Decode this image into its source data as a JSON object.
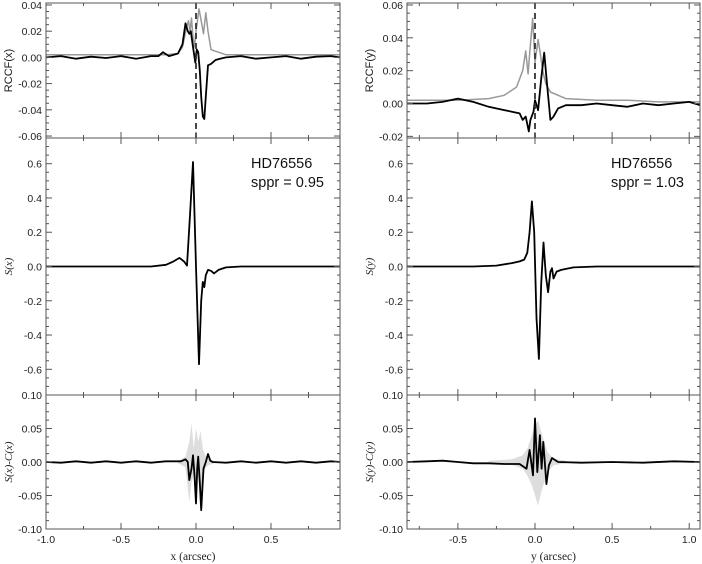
{
  "chart_data": [
    {
      "type": "line",
      "panel": "top-left",
      "ylabel": "RCCF(x)",
      "xlim": [
        -1.0,
        0.96
      ],
      "ylim": [
        -0.0615,
        0.0415
      ],
      "xticks": [
        "-1.0",
        "-0.5",
        "0.0",
        "0.5"
      ],
      "yticks": [
        "-0.06",
        "-0.04",
        "-0.02",
        "0.00",
        "0.02",
        "0.04"
      ],
      "show_xtick_labels": false,
      "vline": {
        "x": 0.0,
        "style": "dashed",
        "color": "#333333"
      },
      "series": [
        {
          "name": "gray",
          "color": "#999999",
          "x": [
            -1,
            -0.5,
            -0.2,
            -0.12,
            -0.09,
            -0.065,
            -0.05,
            -0.04,
            -0.03,
            -0.02,
            -0.01,
            0.0,
            0.02,
            0.035,
            0.05,
            0.065,
            0.08,
            0.1,
            0.12,
            0.15,
            0.2,
            0.3,
            0.5,
            0.96
          ],
          "y": [
            0.002,
            0.002,
            0.002,
            0.003,
            0.008,
            0.022,
            0.028,
            0.02,
            0.03,
            0.015,
            0.008,
            0.02,
            0.037,
            0.028,
            0.018,
            0.034,
            0.02,
            0.006,
            0.005,
            0.004,
            0.002,
            0.002,
            0.002,
            0.002
          ]
        },
        {
          "name": "black",
          "color": "#000000",
          "x": [
            -1.0,
            -0.9,
            -0.8,
            -0.7,
            -0.6,
            -0.5,
            -0.4,
            -0.3,
            -0.25,
            -0.22,
            -0.18,
            -0.12,
            -0.09,
            -0.07,
            -0.055,
            -0.045,
            -0.035,
            -0.02,
            -0.005,
            0.005,
            0.015,
            0.025,
            0.035,
            0.045,
            0.055,
            0.065,
            0.08,
            0.1,
            0.13,
            0.16,
            0.2,
            0.3,
            0.4,
            0.5,
            0.6,
            0.7,
            0.8,
            0.9,
            0.96
          ],
          "y": [
            0,
            0.001,
            -0.001,
            0.0005,
            -0.0005,
            0.001,
            -0.001,
            0.001,
            0.001,
            0.004,
            0.001,
            0.003,
            0.01,
            0.026,
            0.02,
            0.018,
            0.02,
            0.008,
            -0.004,
            0.006,
            0.004,
            -0.01,
            -0.03,
            -0.045,
            -0.047,
            -0.03,
            -0.006,
            -0.005,
            -0.002,
            -0.001,
            0,
            0.001,
            -0.001,
            0,
            0.001,
            -0.001,
            0.0005,
            0.001,
            0
          ]
        }
      ]
    },
    {
      "type": "line",
      "panel": "mid-left",
      "ylabel": "S(x)",
      "xlim": [
        -1.0,
        0.96
      ],
      "ylim": [
        -0.75,
        0.75
      ],
      "xticks": [
        "-1.0",
        "-0.5",
        "0.0",
        "0.5"
      ],
      "yticks": [
        "-0.6",
        "-0.4",
        "-0.2",
        "0.0",
        "0.2",
        "0.4",
        "0.6"
      ],
      "show_xtick_labels": false,
      "annotations": [
        "HD76556",
        "sppr = 0.95"
      ],
      "series": [
        {
          "name": "S(x)",
          "color": "#000000",
          "x": [
            -1.0,
            -0.5,
            -0.3,
            -0.2,
            -0.15,
            -0.11,
            -0.08,
            -0.06,
            -0.04,
            -0.02,
            0.0,
            0.02,
            0.035,
            0.045,
            0.055,
            0.065,
            0.08,
            0.1,
            0.12,
            0.15,
            0.2,
            0.3,
            0.6,
            0.96
          ],
          "y": [
            0,
            0,
            0,
            0.01,
            0.03,
            0.05,
            0.03,
            0.005,
            0.3,
            0.61,
            0.0,
            -0.57,
            -0.2,
            -0.09,
            -0.12,
            -0.05,
            -0.02,
            -0.025,
            -0.04,
            -0.02,
            -0.005,
            0,
            0,
            0
          ]
        }
      ]
    },
    {
      "type": "line",
      "panel": "bottom-left",
      "ylabel": "S(x)-C(x)",
      "xlabel": "x (arcsec)",
      "xlim": [
        -1.0,
        0.96
      ],
      "ylim": [
        -0.1,
        0.1
      ],
      "xticks": [
        "-1.0",
        "-0.5",
        "0.0",
        "0.5"
      ],
      "yticks": [
        "-0.10",
        "-0.05",
        "0.00",
        "0.05",
        "0.10"
      ],
      "show_xtick_labels": true,
      "band": {
        "color": "#dddddd",
        "x": [
          -0.12,
          -0.07,
          -0.045,
          -0.03,
          -0.015,
          0.0,
          0.015,
          0.03,
          0.045,
          0.06,
          0.08,
          0.12
        ],
        "upper": [
          0.002,
          0.008,
          0.03,
          0.057,
          0.02,
          0.05,
          0.03,
          0.046,
          0.02,
          0.01,
          0.005,
          0.002
        ],
        "lower": [
          -0.002,
          -0.008,
          -0.06,
          -0.03,
          -0.02,
          -0.06,
          -0.02,
          -0.07,
          -0.03,
          -0.01,
          -0.005,
          -0.002
        ]
      },
      "series": [
        {
          "name": "residual",
          "color": "#000000",
          "x": [
            -1.0,
            -0.9,
            -0.8,
            -0.7,
            -0.6,
            -0.5,
            -0.4,
            -0.3,
            -0.2,
            -0.1,
            -0.07,
            -0.055,
            -0.045,
            -0.03,
            -0.02,
            -0.01,
            0.0,
            0.008,
            0.015,
            0.025,
            0.035,
            0.05,
            0.065,
            0.08,
            0.095,
            0.11,
            0.2,
            0.3,
            0.4,
            0.5,
            0.6,
            0.7,
            0.8,
            0.9,
            0.96
          ],
          "y": [
            0,
            -0.001,
            0.001,
            -0.001,
            0.001,
            -0.001,
            0.001,
            -0.001,
            0.001,
            0.001,
            0.004,
            0.0,
            -0.027,
            -0.01,
            0.01,
            -0.02,
            -0.062,
            -0.01,
            0.008,
            -0.03,
            -0.072,
            -0.01,
            0.0,
            0.012,
            0.002,
            0,
            -0.001,
            0.001,
            -0.001,
            0.001,
            -0.001,
            0.001,
            -0.001,
            0.001,
            0
          ]
        }
      ]
    },
    {
      "type": "line",
      "panel": "top-right",
      "ylabel": "RCCF(y)",
      "xlim": [
        -0.83,
        1.07
      ],
      "ylim": [
        -0.021,
        0.0612
      ],
      "xticks": [
        "-0.5",
        "0.0",
        "0.5",
        "1.0"
      ],
      "yticks": [
        "-0.02",
        "0.00",
        "0.02",
        "0.04",
        "0.06"
      ],
      "show_xtick_labels": false,
      "vline": {
        "x": 0.0,
        "style": "dashed",
        "color": "#333333"
      },
      "series": [
        {
          "name": "gray",
          "color": "#999999",
          "x": [
            -0.83,
            -0.5,
            -0.3,
            -0.2,
            -0.12,
            -0.08,
            -0.06,
            -0.045,
            -0.035,
            -0.015,
            0.0,
            0.02,
            0.035,
            0.05,
            0.07,
            0.1,
            0.15,
            0.2,
            0.4,
            0.6,
            0.8,
            1.07
          ],
          "y": [
            0.002,
            0.002,
            0.003,
            0.005,
            0.01,
            0.02,
            0.032,
            0.018,
            0.03,
            0.052,
            0.025,
            0.039,
            0.03,
            0.02,
            0.012,
            0.007,
            0.005,
            0.003,
            0.002,
            0.002,
            0.001,
            0.001
          ]
        },
        {
          "name": "black",
          "color": "#000000",
          "x": [
            -0.83,
            -0.7,
            -0.6,
            -0.5,
            -0.45,
            -0.4,
            -0.3,
            -0.2,
            -0.15,
            -0.1,
            -0.08,
            -0.06,
            -0.04,
            -0.03,
            -0.01,
            0.0,
            0.02,
            0.04,
            0.06,
            0.08,
            0.1,
            0.12,
            0.15,
            0.2,
            0.3,
            0.4,
            0.5,
            0.6,
            0.7,
            0.8,
            0.9,
            1.0,
            1.07
          ],
          "y": [
            0,
            0.0,
            0.001,
            0.003,
            0.002,
            0.001,
            -0.002,
            -0.004,
            -0.005,
            -0.006,
            -0.01,
            -0.008,
            -0.017,
            -0.01,
            -0.005,
            0.002,
            -0.004,
            0.015,
            0.031,
            0.01,
            -0.01,
            -0.008,
            -0.003,
            -0.001,
            -0.001,
            0.0,
            -0.001,
            -0.002,
            0.0,
            -0.001,
            0.0,
            0.001,
            -0.001
          ]
        }
      ]
    },
    {
      "type": "line",
      "panel": "mid-right",
      "ylabel": "S(y)",
      "xlim": [
        -0.83,
        1.07
      ],
      "ylim": [
        -0.75,
        0.75
      ],
      "xticks": [
        "-0.5",
        "0.0",
        "0.5",
        "1.0"
      ],
      "yticks": [
        "-0.6",
        "-0.4",
        "-0.2",
        "0.0",
        "0.2",
        "0.4",
        "0.6"
      ],
      "show_xtick_labels": false,
      "annotations": [
        "HD76556",
        "sppr = 1.03"
      ],
      "series": [
        {
          "name": "S(y)",
          "color": "#000000",
          "x": [
            -0.83,
            -0.4,
            -0.25,
            -0.15,
            -0.1,
            -0.07,
            -0.05,
            -0.035,
            -0.02,
            -0.005,
            0.01,
            0.025,
            0.04,
            0.055,
            0.07,
            0.085,
            0.1,
            0.11,
            0.12,
            0.14,
            0.17,
            0.25,
            0.4,
            1.07
          ],
          "y": [
            0,
            0,
            0.005,
            0.02,
            0.03,
            0.04,
            0.08,
            0.2,
            0.38,
            0.2,
            -0.3,
            -0.54,
            -0.1,
            0.14,
            -0.05,
            -0.15,
            -0.03,
            -0.01,
            -0.07,
            -0.03,
            -0.02,
            -0.005,
            0,
            0
          ]
        }
      ]
    },
    {
      "type": "line",
      "panel": "bottom-right",
      "ylabel": "S(y)-C(y)",
      "xlabel": "y (arcsec)",
      "xlim": [
        -0.83,
        1.07
      ],
      "ylim": [
        -0.1,
        0.1
      ],
      "xticks": [
        "-0.5",
        "0.0",
        "0.5",
        "1.0"
      ],
      "yticks": [
        "-0.10",
        "-0.05",
        "0.00",
        "0.05",
        "0.10"
      ],
      "show_xtick_labels": true,
      "band": {
        "color": "#dddddd",
        "x": [
          -0.3,
          -0.15,
          -0.08,
          -0.05,
          -0.02,
          0.0,
          0.02,
          0.04,
          0.06,
          0.08,
          0.12,
          0.2
        ],
        "upper": [
          0.002,
          0.004,
          0.01,
          0.02,
          0.04,
          0.055,
          0.062,
          0.045,
          0.03,
          0.015,
          0.005,
          0.002
        ],
        "lower": [
          -0.002,
          -0.004,
          -0.01,
          -0.02,
          -0.035,
          -0.05,
          -0.065,
          -0.045,
          -0.03,
          -0.015,
          -0.005,
          -0.002
        ]
      },
      "series": [
        {
          "name": "residual",
          "color": "#000000",
          "x": [
            -0.83,
            -0.7,
            -0.6,
            -0.5,
            -0.4,
            -0.3,
            -0.2,
            -0.1,
            -0.055,
            -0.035,
            -0.013,
            0.0,
            0.015,
            0.032,
            0.043,
            0.054,
            0.074,
            0.09,
            0.11,
            0.15,
            0.3,
            0.5,
            0.7,
            0.9,
            1.07
          ],
          "y": [
            0,
            0.001,
            0.002,
            0.0,
            -0.002,
            -0.002,
            -0.003,
            -0.003,
            -0.01,
            0.018,
            -0.02,
            0.065,
            -0.015,
            0.04,
            -0.01,
            0.03,
            -0.033,
            -0.005,
            0.006,
            0.0,
            -0.001,
            0.0,
            -0.001,
            0.001,
            0
          ]
        }
      ]
    }
  ]
}
